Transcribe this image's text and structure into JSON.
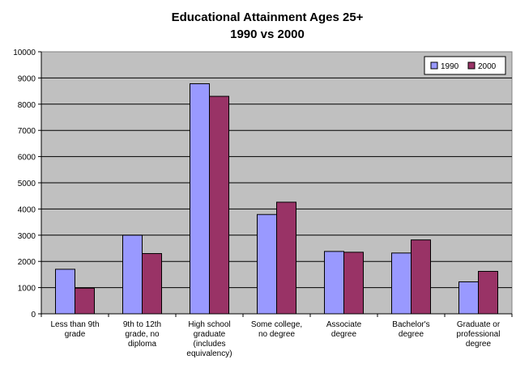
{
  "chart_data": {
    "type": "bar",
    "title": "Educational Attainment Ages 25+",
    "subtitle": "1990 vs 2000",
    "xlabel": "",
    "ylabel": "",
    "ylim": [
      0,
      10000
    ],
    "yticks": [
      "0",
      "1000",
      "2000",
      "3000",
      "4000",
      "5000",
      "6000",
      "7000",
      "8000",
      "9000",
      "10000"
    ],
    "grid": true,
    "legend_position": "top-right",
    "categories": [
      [
        "Less than 9th",
        "grade"
      ],
      [
        "9th to 12th",
        "grade, no",
        "diploma"
      ],
      [
        "High school",
        "graduate",
        "(includes",
        "equivalency)"
      ],
      [
        "Some college,",
        "no degree"
      ],
      [
        "Associate",
        "degree"
      ],
      [
        "Bachelor's",
        "degree"
      ],
      [
        "Graduate or",
        "professional",
        "degree"
      ]
    ],
    "series": [
      {
        "name": "1990",
        "color": "#9999ff",
        "values": [
          1700,
          3000,
          8780,
          3790,
          2380,
          2320,
          1220
        ]
      },
      {
        "name": "2000",
        "color": "#993366",
        "values": [
          980,
          2300,
          8300,
          4260,
          2350,
          2820,
          1620
        ]
      }
    ],
    "plot_background": "#c0c0c0"
  }
}
